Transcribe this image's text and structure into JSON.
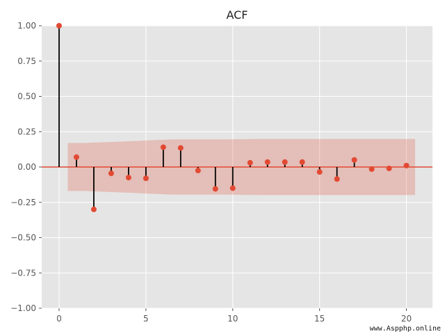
{
  "chart_data": {
    "type": "stem",
    "title": "ACF",
    "xlabel": "",
    "ylabel": "",
    "x": [
      0,
      1,
      2,
      3,
      4,
      5,
      6,
      7,
      8,
      9,
      10,
      11,
      12,
      13,
      14,
      15,
      16,
      17,
      18,
      19,
      20
    ],
    "values": [
      1.0,
      0.07,
      -0.3,
      -0.045,
      -0.075,
      -0.08,
      0.14,
      0.135,
      -0.025,
      -0.155,
      -0.15,
      0.03,
      0.035,
      0.035,
      0.035,
      -0.035,
      -0.085,
      0.05,
      -0.015,
      -0.01,
      0.01
    ],
    "confidence_band": {
      "x": [
        0.5,
        1.5,
        2.5,
        3.5,
        4.5,
        5.5,
        6.5,
        7.5,
        8.5,
        9.5,
        10.5,
        11.5,
        12.5,
        13.5,
        14.5,
        15.5,
        16.5,
        17.5,
        18.5,
        19.5,
        20.5
      ],
      "upper": [
        0.17,
        0.17,
        0.175,
        0.18,
        0.185,
        0.19,
        0.195,
        0.195,
        0.195,
        0.195,
        0.197,
        0.198,
        0.198,
        0.198,
        0.198,
        0.198,
        0.198,
        0.198,
        0.198,
        0.198,
        0.198
      ],
      "lower": [
        -0.17,
        -0.17,
        -0.175,
        -0.18,
        -0.185,
        -0.19,
        -0.195,
        -0.195,
        -0.195,
        -0.195,
        -0.197,
        -0.198,
        -0.198,
        -0.198,
        -0.198,
        -0.198,
        -0.198,
        -0.198,
        -0.198,
        -0.198,
        -0.198
      ]
    },
    "xlim": [
      -1,
      21.5
    ],
    "ylim": [
      -1.0,
      1.0
    ],
    "xticks": [
      0,
      5,
      10,
      15,
      20
    ],
    "yticks": [
      1.0,
      0.75,
      0.5,
      0.25,
      0.0,
      -0.25,
      -0.5,
      -0.75,
      -1.0
    ],
    "ytick_labels": [
      "1.00",
      "0.75",
      "0.50",
      "0.25",
      "0.00",
      "−0.25",
      "−0.50",
      "−0.75",
      "−1.00"
    ],
    "grid": true,
    "colors": {
      "background": "#e5e5e5",
      "grid": "#ffffff",
      "marker": "#e24a33",
      "stem": "#000000",
      "baseline": "#e24a33",
      "band": "#e24a33"
    }
  },
  "watermark": "www.Aspphp.online"
}
